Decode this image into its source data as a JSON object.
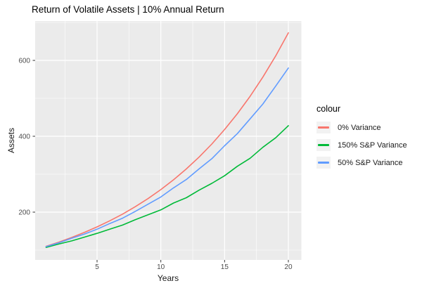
{
  "title": "Return of Volatile Assets | 10% Annual Return",
  "colors": {
    "panel_background": "#EBEBEB",
    "gridline": "#FFFFFF",
    "tick_mark": "#333333",
    "tick_label": "#4D4D4D",
    "legend_key_background": "#F2F2F2",
    "series_red": "#F8766D",
    "series_green": "#00BA38",
    "series_blue": "#619CFF"
  },
  "chart_data": {
    "type": "line",
    "title": "Return of Volatile Assets | 10% Annual Return",
    "xlabel": "Years",
    "ylabel": "Assets",
    "legend_title": "colour",
    "legend_position": "right",
    "grid": "on",
    "x": [
      1,
      2,
      3,
      4,
      5,
      6,
      7,
      8,
      9,
      10,
      11,
      12,
      13,
      14,
      15,
      16,
      17,
      18,
      19,
      20
    ],
    "x_ticks": [
      5,
      10,
      15,
      20
    ],
    "x_minor_ticks": [
      2.5,
      7.5,
      12.5,
      17.5
    ],
    "y_ticks": [
      200,
      400,
      600
    ],
    "y_minor_ticks": [
      100,
      300,
      500,
      700
    ],
    "xlim": [
      0.05,
      20.95
    ],
    "ylim": [
      74,
      704
    ],
    "series": [
      {
        "name": "0% Variance",
        "color": "#F8766D",
        "values": [
          110,
          121,
          133.1,
          146.4,
          161.1,
          177.2,
          194.9,
          214.4,
          235.8,
          259.4,
          285.3,
          313.8,
          345.2,
          379.7,
          417.7,
          459.5,
          505.4,
          556,
          611.6,
          672.7
        ]
      },
      {
        "name": "150% S&P Variance",
        "color": "#00BA38",
        "values": [
          107,
          116,
          124,
          134,
          144,
          155,
          166,
          180,
          193,
          206,
          224,
          238,
          258,
          276,
          296,
          321,
          342,
          371,
          396,
          428
        ]
      },
      {
        "name": "50% S&P Variance",
        "color": "#619CFF",
        "values": [
          109,
          119,
          131,
          142,
          155,
          170,
          184,
          202,
          221,
          240,
          264,
          286,
          314,
          341,
          375,
          407,
          446,
          485,
          532,
          580
        ]
      }
    ]
  }
}
